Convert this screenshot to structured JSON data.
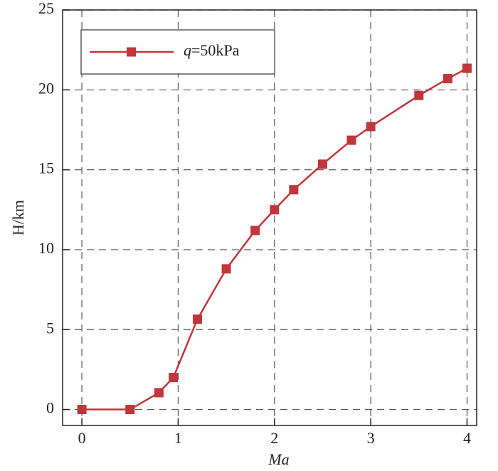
{
  "chart_data": {
    "type": "line",
    "x_label": "Ma",
    "y_label": "H/km",
    "x": [
      0,
      0.5,
      0.8,
      0.95,
      1.2,
      1.5,
      1.8,
      2.0,
      2.2,
      2.5,
      2.8,
      3.0,
      3.5,
      3.8,
      4.0
    ],
    "series": [
      {
        "name": "q=50kPa",
        "color": "#c0363a",
        "values": [
          0,
          0,
          1.05,
          2.0,
          5.65,
          8.8,
          11.2,
          12.5,
          13.75,
          15.35,
          16.85,
          17.7,
          19.65,
          20.7,
          21.35
        ]
      }
    ],
    "xlim": [
      -0.2,
      4.1
    ],
    "ylim": [
      -1,
      25
    ],
    "xticks": [
      0,
      1,
      2,
      3,
      4
    ],
    "yticks": [
      0,
      5,
      10,
      15,
      20,
      25
    ],
    "grid": true,
    "legend": "upper left"
  }
}
